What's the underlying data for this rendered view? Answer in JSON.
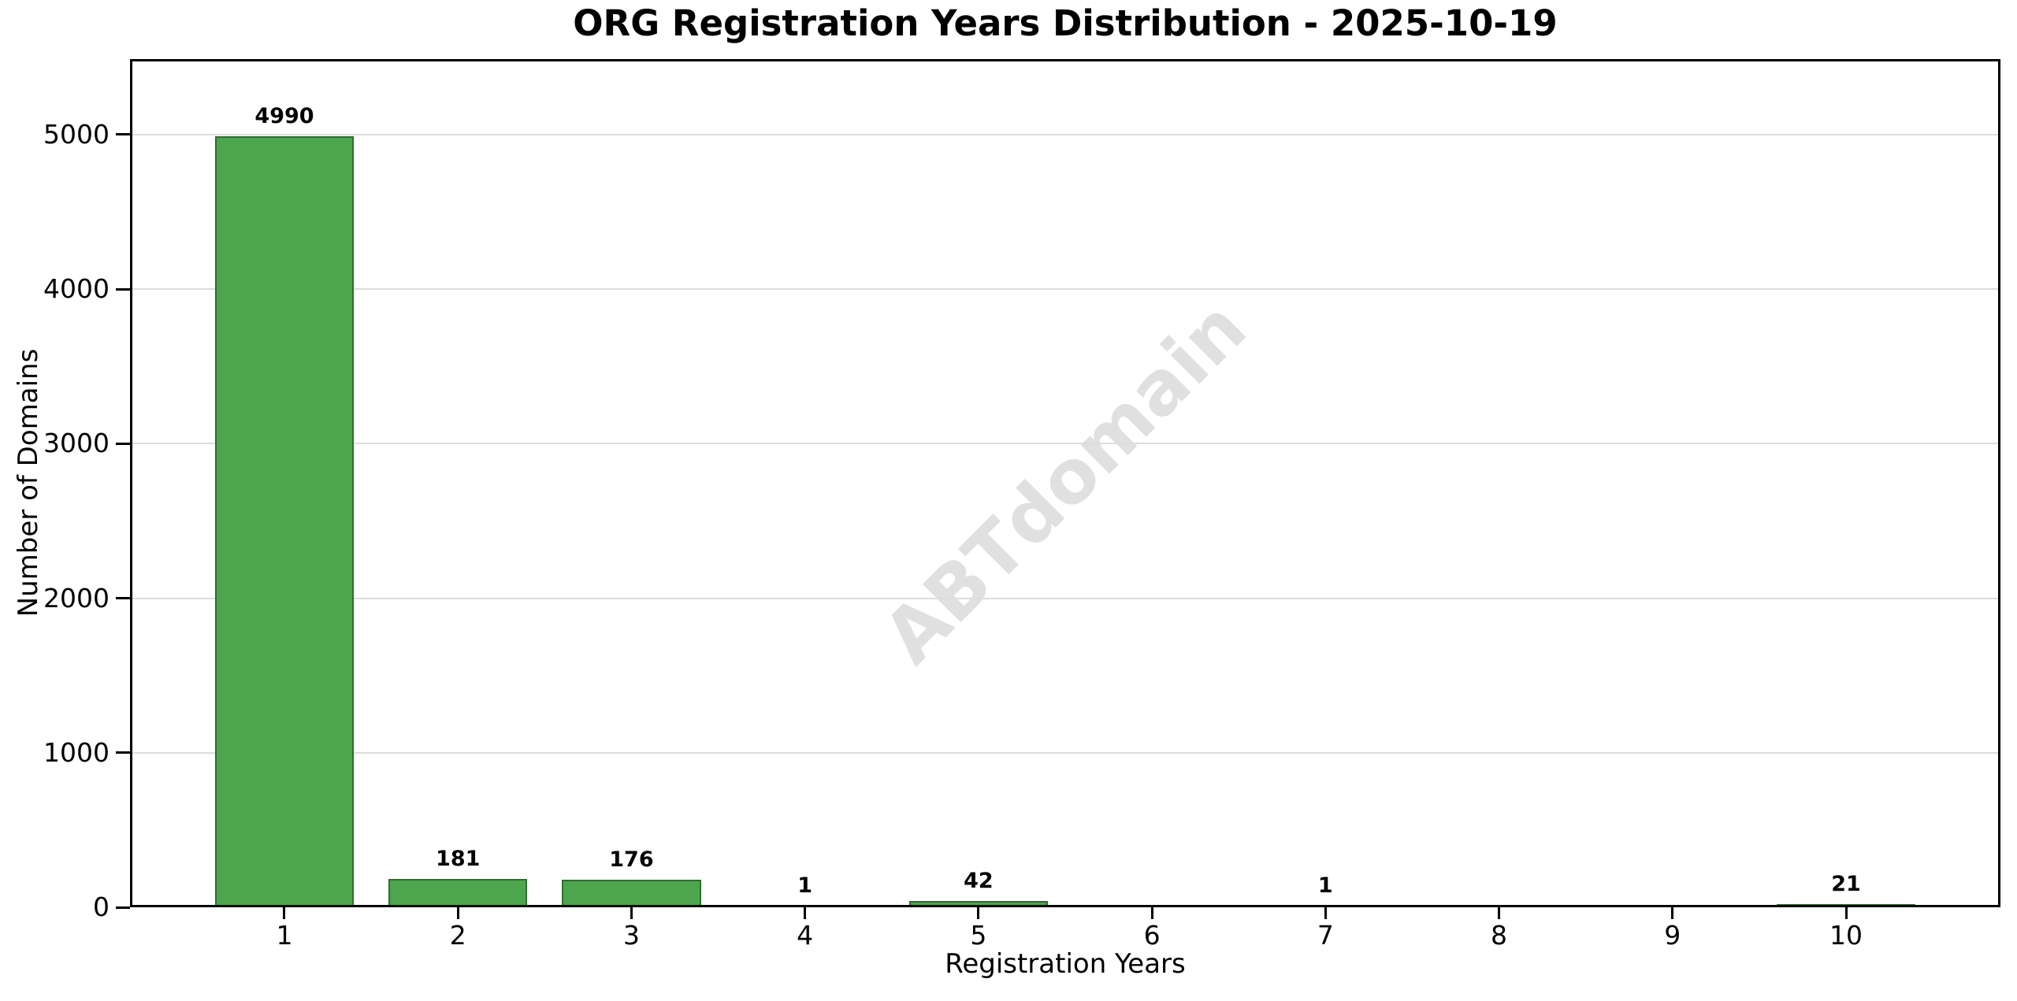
{
  "title": "ORG Registration Years Distribution - 2025-10-19",
  "watermark": "ABTdomain",
  "chart_data": {
    "type": "bar",
    "title": "ORG Registration Years Distribution - 2025-10-19",
    "xlabel": "Registration Years",
    "ylabel": "Number of Domains",
    "categories": [
      "1",
      "2",
      "3",
      "4",
      "5",
      "6",
      "7",
      "8",
      "9",
      "10"
    ],
    "values": [
      4990,
      181,
      176,
      1,
      42,
      0,
      1,
      0,
      0,
      21
    ],
    "bar_labels": [
      "4990",
      "181",
      "176",
      "1",
      "42",
      "",
      "1",
      "",
      "",
      "21"
    ],
    "yticks": [
      0,
      1000,
      2000,
      3000,
      4000,
      5000
    ],
    "ytick_labels": [
      "0",
      "1000",
      "2000",
      "3000",
      "4000",
      "5000"
    ],
    "ylim": [
      0,
      5489
    ],
    "grid": "horizontal-only",
    "legend": "none",
    "colors": {
      "bar_fill": "#4da64d",
      "bar_edge": "#2d6e2d",
      "grid": "#dcdcdc",
      "watermark": "#e0e0e0",
      "axis": "#000000",
      "background": "#ffffff"
    }
  }
}
